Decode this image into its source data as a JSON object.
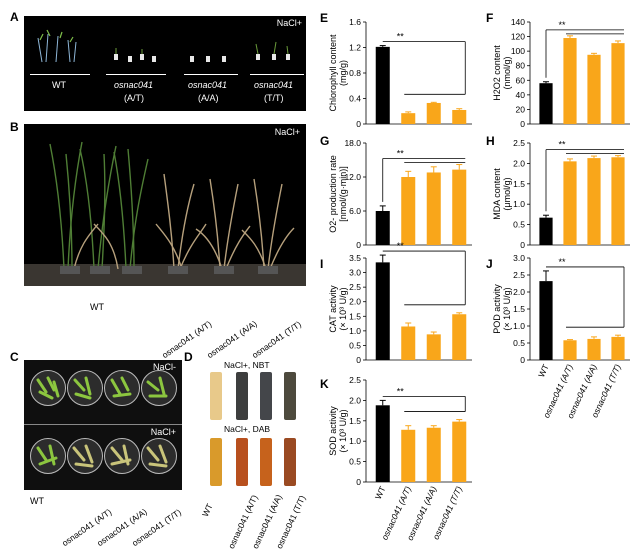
{
  "panels": {
    "A": {
      "letter": "A",
      "condition": "NaCl+",
      "genotypes": [
        "WT",
        "osnac041",
        "osnac041",
        "osnac041"
      ],
      "alleles": [
        "",
        "(A/T)",
        "(A/A)",
        "(T/T)"
      ]
    },
    "B": {
      "letter": "B",
      "condition": "NaCl+",
      "xlabels": [
        "WT",
        "osnac041 (A/T)",
        "osnac041 (A/A)",
        "osnac041 (T/T)"
      ]
    },
    "C": {
      "letter": "C",
      "top_condition": "NaCl-",
      "bottom_condition": "NaCl+",
      "xlabels": [
        "WT",
        "osnac041 (A/T)",
        "osnac041 (A/A)",
        "osnac041 (T/T)"
      ]
    },
    "D": {
      "letter": "D",
      "top_condition": "NaCl+, NBT",
      "bottom_condition": "NaCl+, DAB",
      "xlabels": [
        "WT",
        "osnac041 (A/T)",
        "osnac041 (A/A)",
        "osnac041 (T/T)"
      ]
    }
  },
  "significance": "**",
  "colors": {
    "wt": "#000000",
    "mutant": "#f9a61a"
  },
  "chart_data": [
    {
      "letter": "E",
      "type": "bar",
      "ylabel_l1": "Chlorophyll content",
      "ylabel_l2": "(mg/g)",
      "yticks": [
        "0",
        "0.4",
        "0.8",
        "1.2",
        "1.6"
      ],
      "ylim": [
        0,
        1.6
      ],
      "categories": [
        "WT",
        "osnac041 (A/T)",
        "osnac041 (A/A)",
        "osnac041 (T/T)"
      ],
      "values": [
        1.21,
        0.17,
        0.33,
        0.22
      ],
      "errors": [
        0.02,
        0.02,
        0.01,
        0.02
      ]
    },
    {
      "letter": "F",
      "type": "bar",
      "ylabel_l1": "H2O2 content",
      "ylabel_l2": "(nmol/g)",
      "yticks": [
        "0",
        "20",
        "40",
        "60",
        "80",
        "100",
        "120",
        "140"
      ],
      "ylim": [
        0,
        140
      ],
      "categories": [
        "WT",
        "osnac041 (A/T)",
        "osnac041 (A/A)",
        "osnac041 (T/T)"
      ],
      "values": [
        56,
        118,
        95,
        111
      ],
      "errors": [
        2,
        3,
        2,
        3
      ]
    },
    {
      "letter": "G",
      "type": "bar",
      "ylabel_l1": "O2- production rate",
      "ylabel_l2": "[nmol/(g·min)]",
      "yticks": [
        "0",
        "6.0",
        "12.0",
        "18.0"
      ],
      "ylim": [
        0,
        18
      ],
      "categories": [
        "WT",
        "osnac041 (A/T)",
        "osnac041 (A/A)",
        "osnac041 (T/T)"
      ],
      "values": [
        6.0,
        12.0,
        12.8,
        13.3
      ],
      "errors": [
        0.9,
        1.0,
        1.0,
        0.9
      ]
    },
    {
      "letter": "H",
      "type": "bar",
      "ylabel_l1": "MDA content",
      "ylabel_l2": "(μmol/g)",
      "yticks": [
        "0",
        "0.5",
        "1.0",
        "1.5",
        "2.0",
        "2.5"
      ],
      "ylim": [
        0,
        2.5
      ],
      "categories": [
        "WT",
        "osnac041 (A/T)",
        "osnac041 (A/A)",
        "osnac041 (T/T)"
      ],
      "values": [
        0.67,
        2.05,
        2.13,
        2.15
      ],
      "errors": [
        0.06,
        0.06,
        0.05,
        0.04
      ]
    },
    {
      "letter": "I",
      "type": "bar",
      "ylabel_l1": "CAT activity",
      "ylabel_l2": "(× 10³ U/g)",
      "yticks": [
        "0",
        "0.5",
        "1.0",
        "1.5",
        "2.0",
        "2.5",
        "3.0",
        "3.5"
      ],
      "ylim": [
        0,
        3.5
      ],
      "categories": [
        "WT",
        "osnac041 (A/T)",
        "osnac041 (A/A)",
        "osnac041 (T/T)"
      ],
      "values": [
        3.35,
        1.15,
        0.88,
        1.57
      ],
      "errors": [
        0.25,
        0.12,
        0.08,
        0.05
      ]
    },
    {
      "letter": "J",
      "type": "bar",
      "ylabel_l1": "POD activity",
      "ylabel_l2": "(× 10³ U/g)",
      "yticks": [
        "0",
        "0.5",
        "1.0",
        "1.5",
        "2.0",
        "2.5",
        "3.0"
      ],
      "ylim": [
        0,
        3
      ],
      "categories": [
        "WT",
        "osnac041 (A/T)",
        "osnac041 (A/A)",
        "osnac041 (T/T)"
      ],
      "values": [
        2.32,
        0.58,
        0.62,
        0.68
      ],
      "errors": [
        0.3,
        0.02,
        0.06,
        0.05
      ]
    },
    {
      "letter": "K",
      "type": "bar",
      "ylabel_l1": "SOD activity",
      "ylabel_l2": "(× 10³ U/g)",
      "yticks": [
        "0",
        "0.5",
        "1.0",
        "1.5",
        "2.0",
        "2.5"
      ],
      "ylim": [
        0,
        2.5
      ],
      "categories": [
        "WT",
        "osnac041 (A/T)",
        "osnac041 (A/A)",
        "osnac041 (T/T)"
      ],
      "values": [
        1.88,
        1.28,
        1.33,
        1.48
      ],
      "errors": [
        0.12,
        0.1,
        0.05,
        0.05
      ]
    }
  ]
}
